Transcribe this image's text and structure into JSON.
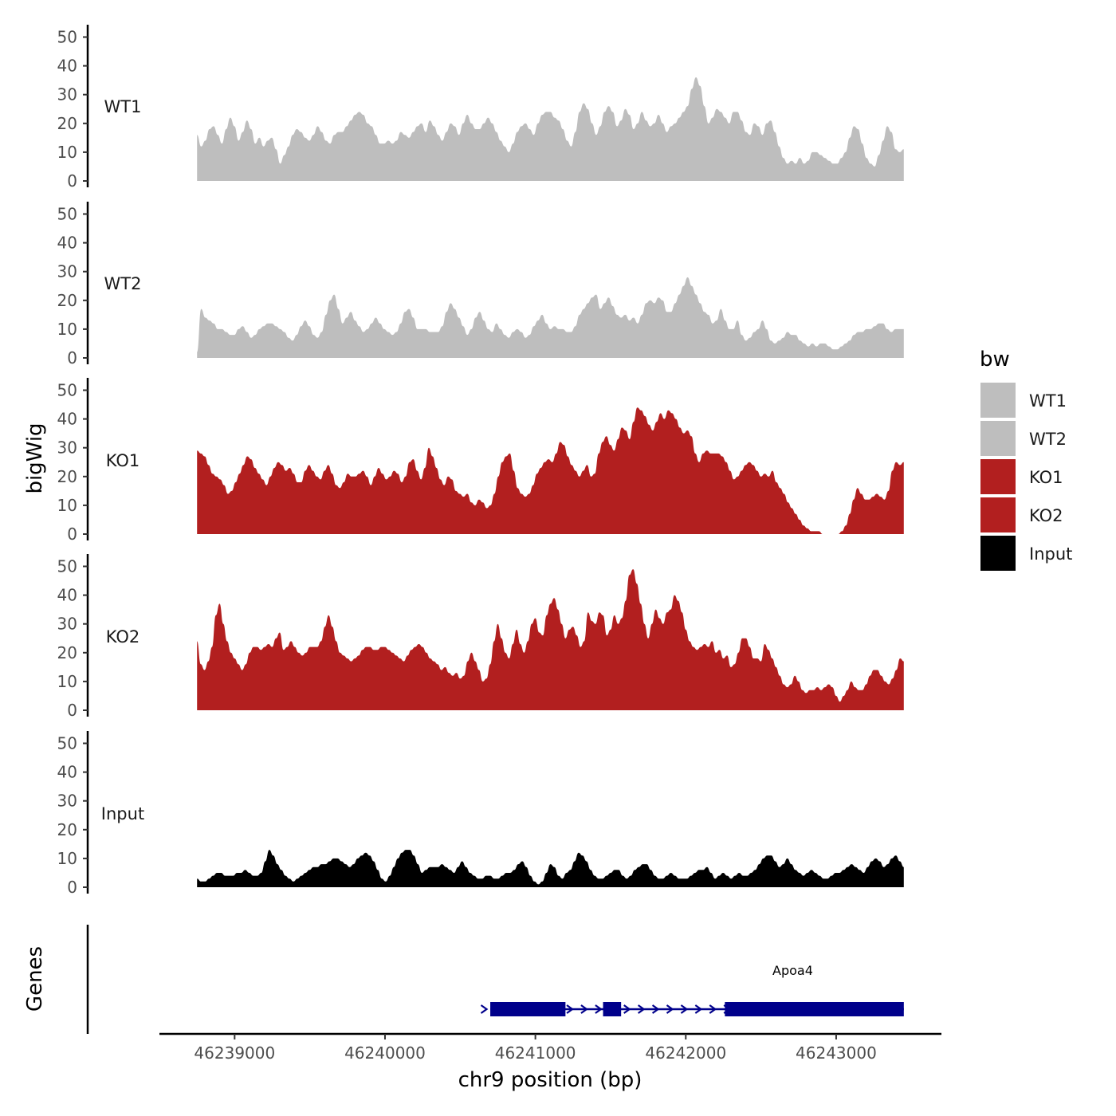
{
  "chart_data": {
    "type": "area",
    "title": "",
    "xlabel": "chr9 position (bp)",
    "ylabel": "bigWig",
    "gene_axis_label": "Genes",
    "xlim": [
      46238500,
      46243700
    ],
    "x_ticks": [
      46239000,
      46240000,
      46241000,
      46242000,
      46243000
    ],
    "x_tick_labels": [
      "46239000",
      "46240000",
      "46241000",
      "46242000",
      "46243000"
    ],
    "ylim": [
      0,
      55
    ],
    "y_ticks": [
      0,
      10,
      20,
      30,
      40,
      50
    ],
    "y_tick_labels": [
      "0",
      "10",
      "20",
      "30",
      "40",
      "50"
    ],
    "grid": false,
    "legend": {
      "title": "bw",
      "placement": "right",
      "entries": [
        {
          "label": "WT1",
          "color": "#bebebe"
        },
        {
          "label": "WT2",
          "color": "#bebebe"
        },
        {
          "label": "KO1",
          "color": "#b21f1f"
        },
        {
          "label": "KO2",
          "color": "#b21f1f"
        },
        {
          "label": "Input",
          "color": "#000000"
        }
      ]
    },
    "x_start": 46238750,
    "x_end": 46243450,
    "series": [
      {
        "name": "WT1",
        "color": "#bebebe",
        "values": [
          16,
          12,
          14,
          18,
          19,
          16,
          13,
          18,
          22,
          19,
          14,
          17,
          21,
          18,
          13,
          15,
          12,
          14,
          15,
          11,
          6,
          9,
          12,
          16,
          18,
          17,
          15,
          14,
          16,
          19,
          17,
          14,
          13,
          16,
          17,
          17,
          19,
          21,
          23,
          24,
          23,
          20,
          19,
          16,
          13,
          13,
          14,
          13,
          14,
          17,
          16,
          15,
          17,
          19,
          20,
          17,
          21,
          19,
          16,
          14,
          17,
          20,
          19,
          16,
          20,
          23,
          20,
          18,
          18,
          20,
          22,
          20,
          17,
          14,
          12,
          10,
          13,
          17,
          19,
          20,
          18,
          16,
          20,
          23,
          24,
          24,
          22,
          21,
          18,
          14,
          12,
          17,
          24,
          27,
          25,
          20,
          16,
          19,
          24,
          26,
          24,
          19,
          21,
          25,
          23,
          18,
          20,
          24,
          21,
          19,
          20,
          23,
          20,
          17,
          19,
          20,
          22,
          24,
          26,
          32,
          36,
          33,
          26,
          20,
          22,
          25,
          24,
          22,
          20,
          24,
          24,
          21,
          17,
          16,
          20,
          19,
          16,
          20,
          21,
          17,
          12,
          8,
          6,
          7,
          6,
          8,
          6,
          7,
          10,
          10,
          9,
          8,
          7,
          6,
          6,
          8,
          10,
          15,
          19,
          18,
          13,
          8,
          6,
          5,
          9,
          14,
          19,
          17,
          11,
          10,
          11
        ],
        "x_start_override": null
      },
      {
        "name": "WT2",
        "color": "#bebebe",
        "values": [
          2,
          17,
          14,
          13,
          12,
          10,
          10,
          9,
          8,
          8,
          10,
          11,
          9,
          7,
          8,
          10,
          11,
          12,
          12,
          11,
          10,
          9,
          7,
          6,
          8,
          11,
          13,
          11,
          8,
          7,
          9,
          15,
          20,
          22,
          17,
          12,
          14,
          16,
          13,
          11,
          9,
          10,
          12,
          14,
          12,
          10,
          9,
          8,
          9,
          12,
          16,
          17,
          14,
          10,
          10,
          10,
          9,
          9,
          9,
          11,
          16,
          19,
          17,
          14,
          11,
          8,
          10,
          14,
          16,
          13,
          10,
          9,
          12,
          10,
          8,
          7,
          9,
          10,
          9,
          7,
          8,
          11,
          13,
          15,
          12,
          10,
          11,
          10,
          10,
          9,
          9,
          11,
          15,
          17,
          19,
          21,
          22,
          17,
          19,
          21,
          18,
          15,
          14,
          15,
          13,
          14,
          12,
          15,
          19,
          20,
          19,
          21,
          20,
          16,
          16,
          19,
          22,
          25,
          28,
          25,
          22,
          19,
          16,
          15,
          12,
          13,
          17,
          13,
          10,
          10,
          13,
          8,
          6,
          7,
          9,
          10,
          13,
          10,
          6,
          5,
          6,
          7,
          9,
          8,
          8,
          6,
          5,
          4,
          5,
          4,
          5,
          5,
          4,
          3,
          3,
          4,
          5,
          6,
          8,
          9,
          9,
          10,
          10,
          11,
          12,
          12,
          10,
          9,
          10,
          10,
          10
        ],
        "x_start_override": null
      },
      {
        "name": "KO1",
        "color": "#b21f1f",
        "values": [
          29,
          28,
          27,
          24,
          21,
          20,
          19,
          17,
          14,
          15,
          18,
          21,
          24,
          27,
          26,
          23,
          21,
          19,
          17,
          20,
          23,
          25,
          24,
          22,
          23,
          21,
          18,
          18,
          22,
          24,
          22,
          20,
          19,
          22,
          24,
          21,
          17,
          16,
          18,
          21,
          20,
          20,
          21,
          22,
          20,
          17,
          20,
          23,
          21,
          19,
          20,
          22,
          21,
          18,
          20,
          25,
          26,
          22,
          19,
          23,
          30,
          27,
          23,
          19,
          17,
          20,
          19,
          15,
          14,
          13,
          14,
          11,
          10,
          12,
          11,
          9,
          10,
          14,
          20,
          25,
          27,
          28,
          22,
          16,
          14,
          13,
          14,
          17,
          21,
          23,
          25,
          26,
          25,
          28,
          32,
          31,
          27,
          24,
          22,
          20,
          22,
          24,
          20,
          21,
          28,
          32,
          34,
          31,
          29,
          33,
          37,
          36,
          33,
          39,
          44,
          43,
          41,
          38,
          36,
          39,
          42,
          40,
          43,
          42,
          40,
          37,
          35,
          36,
          34,
          28,
          25,
          28,
          29,
          28,
          28,
          28,
          27,
          25,
          22,
          19,
          20,
          22,
          24,
          25,
          24,
          22,
          20,
          21,
          20,
          22,
          18,
          16,
          14,
          11,
          9,
          7,
          5,
          3,
          2,
          1,
          1,
          1,
          0,
          0,
          0,
          0,
          0,
          1,
          3,
          7,
          12,
          16,
          14,
          12,
          12,
          13,
          14,
          13,
          12,
          15,
          22,
          25,
          24,
          25
        ],
        "x_start_override": null
      },
      {
        "name": "KO2",
        "color": "#b21f1f",
        "values": [
          24,
          16,
          14,
          17,
          22,
          33,
          37,
          30,
          24,
          20,
          18,
          16,
          14,
          16,
          20,
          22,
          22,
          21,
          22,
          23,
          22,
          25,
          27,
          21,
          22,
          24,
          22,
          20,
          19,
          20,
          22,
          22,
          22,
          24,
          29,
          33,
          29,
          24,
          20,
          19,
          18,
          17,
          18,
          19,
          21,
          22,
          22,
          21,
          21,
          22,
          22,
          21,
          20,
          19,
          18,
          17,
          19,
          21,
          22,
          23,
          22,
          20,
          18,
          17,
          16,
          14,
          15,
          13,
          12,
          13,
          11,
          12,
          17,
          20,
          17,
          14,
          10,
          11,
          16,
          24,
          30,
          25,
          20,
          18,
          23,
          28,
          23,
          20,
          24,
          30,
          32,
          27,
          26,
          33,
          37,
          39,
          35,
          30,
          25,
          28,
          29,
          26,
          22,
          24,
          34,
          31,
          30,
          34,
          33,
          26,
          28,
          33,
          30,
          32,
          38,
          47,
          49,
          44,
          37,
          30,
          25,
          30,
          35,
          32,
          30,
          34,
          35,
          40,
          38,
          34,
          28,
          24,
          22,
          21,
          22,
          23,
          22,
          24,
          20,
          21,
          18,
          19,
          15,
          16,
          20,
          25,
          25,
          22,
          18,
          18,
          17,
          23,
          21,
          18,
          15,
          12,
          9,
          8,
          9,
          12,
          10,
          7,
          6,
          7,
          7,
          8,
          7,
          8,
          9,
          8,
          5,
          3,
          5,
          7,
          10,
          8,
          7,
          7,
          9,
          12,
          14,
          14,
          12,
          10,
          9,
          11,
          14,
          18,
          17
        ],
        "x_start_override": null
      },
      {
        "name": "Input",
        "color": "#000000",
        "values": [
          3,
          2,
          2,
          3,
          4,
          5,
          5,
          4,
          4,
          4,
          5,
          5,
          6,
          5,
          4,
          4,
          5,
          9,
          13,
          11,
          8,
          6,
          4,
          3,
          2,
          3,
          4,
          5,
          6,
          7,
          7,
          8,
          8,
          9,
          10,
          10,
          9,
          8,
          7,
          8,
          10,
          11,
          12,
          11,
          9,
          6,
          3,
          2,
          4,
          7,
          10,
          12,
          13,
          13,
          11,
          8,
          5,
          6,
          7,
          7,
          7,
          8,
          7,
          6,
          5,
          7,
          9,
          7,
          5,
          4,
          3,
          3,
          4,
          4,
          3,
          3,
          4,
          5,
          5,
          6,
          8,
          9,
          7,
          4,
          2,
          1,
          2,
          5,
          8,
          7,
          4,
          3,
          5,
          6,
          9,
          12,
          11,
          9,
          6,
          4,
          3,
          3,
          4,
          5,
          6,
          6,
          4,
          3,
          4,
          6,
          7,
          8,
          8,
          6,
          4,
          3,
          3,
          4,
          5,
          4,
          3,
          3,
          3,
          4,
          5,
          6,
          6,
          7,
          5,
          3,
          4,
          5,
          4,
          3,
          4,
          5,
          4,
          4,
          5,
          6,
          8,
          10,
          11,
          11,
          9,
          7,
          8,
          10,
          8,
          6,
          5,
          4,
          5,
          6,
          5,
          4,
          3,
          3,
          4,
          5,
          5,
          6,
          7,
          8,
          7,
          6,
          5,
          7,
          9,
          10,
          9,
          7,
          8,
          10,
          11,
          9,
          7
        ],
        "x_start_override": null
      }
    ],
    "gene": {
      "name": "Apoa4",
      "color": "#00008b",
      "start": 46240700,
      "end": 46243450,
      "exons": [
        [
          46240700,
          46241200
        ],
        [
          46241450,
          46241570
        ],
        [
          46242260,
          46243450
        ]
      ],
      "strand": "+"
    }
  }
}
